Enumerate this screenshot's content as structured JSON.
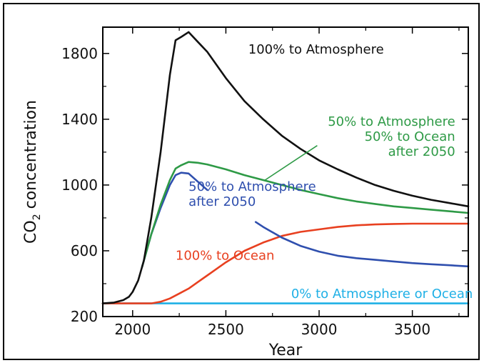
{
  "chart_data": {
    "type": "line",
    "xlabel": "Year",
    "ylabel_main": "CO",
    "ylabel_sub": "2",
    "ylabel_rest": " concentration",
    "xlim": [
      1840,
      3800
    ],
    "ylim": [
      200,
      1960
    ],
    "xticks": [
      2000,
      2500,
      3000,
      3500
    ],
    "yticks": [
      200,
      600,
      1000,
      1400,
      1800
    ],
    "grid": false,
    "series": [
      {
        "name": "100% to Atmosphere",
        "color": "#111111",
        "x": [
          1840,
          1900,
          1950,
          1980,
          2000,
          2030,
          2060,
          2100,
          2150,
          2200,
          2230,
          2260,
          2300,
          2350,
          2400,
          2500,
          2600,
          2700,
          2800,
          2900,
          3000,
          3100,
          3200,
          3300,
          3400,
          3500,
          3600,
          3700,
          3800
        ],
        "values": [
          280,
          285,
          300,
          320,
          350,
          420,
          540,
          800,
          1200,
          1670,
          1880,
          1900,
          1930,
          1870,
          1810,
          1650,
          1510,
          1400,
          1300,
          1220,
          1150,
          1095,
          1045,
          1000,
          965,
          935,
          910,
          890,
          870
        ]
      },
      {
        "name": "50% to Atmosphere 50% to Ocean after 2050",
        "color": "#2e9a46",
        "x": [
          2050,
          2100,
          2150,
          2200,
          2230,
          2260,
          2300,
          2350,
          2400,
          2500,
          2600,
          2700,
          2800,
          2900,
          3000,
          3100,
          3200,
          3300,
          3400,
          3500,
          3600,
          3700,
          3800
        ],
        "values": [
          500,
          700,
          880,
          1030,
          1100,
          1120,
          1140,
          1135,
          1125,
          1095,
          1060,
          1030,
          1000,
          970,
          945,
          920,
          900,
          885,
          870,
          860,
          850,
          840,
          830
        ]
      },
      {
        "name": "50% to Atmosphere after 2050",
        "color": "#2f4fae",
        "x": [
          2050,
          2100,
          2150,
          2200,
          2230,
          2260,
          2300,
          2350,
          2400
        ],
        "values": [
          500,
          700,
          860,
          1000,
          1060,
          1075,
          1070,
          1020,
          970
        ],
        "x2": [
          2660,
          2700,
          2800,
          2900,
          3000,
          3100,
          3200,
          3300,
          3400,
          3500,
          3600,
          3700,
          3800
        ],
        "values2": [
          775,
          745,
          680,
          630,
          595,
          570,
          555,
          545,
          535,
          525,
          518,
          512,
          505
        ]
      },
      {
        "name": "100% to Ocean",
        "color": "#e84020",
        "x": [
          1840,
          2100,
          2150,
          2200,
          2250,
          2300,
          2350,
          2400,
          2500,
          2600,
          2700,
          2800,
          2900,
          3000,
          3100,
          3200,
          3300,
          3400,
          3500,
          3600,
          3700,
          3800
        ],
        "values": [
          280,
          280,
          290,
          310,
          340,
          370,
          410,
          450,
          530,
          600,
          650,
          690,
          715,
          730,
          745,
          755,
          760,
          763,
          765,
          765,
          765,
          765
        ]
      },
      {
        "name": "0% to Atmosphere or Ocean",
        "color": "#1fb0e6",
        "x": [
          1840,
          3800
        ],
        "values": [
          280,
          280
        ]
      }
    ],
    "annotations": [
      {
        "lines": [
          "100% to Atmosphere"
        ],
        "color": "#111111",
        "anchor": "start",
        "at": [
          2620,
          1800
        ]
      },
      {
        "lines": [
          "50% to Atmosphere",
          "50% to Ocean",
          "after 2050"
        ],
        "color": "#2e9a46",
        "anchor": "end",
        "at": [
          3730,
          1360
        ]
      },
      {
        "lines": [
          "50% to Atmosphere",
          "after 2050"
        ],
        "color": "#2f4fae",
        "anchor": "start",
        "at": [
          2300,
          965
        ]
      },
      {
        "lines": [
          "100% to Ocean"
        ],
        "color": "#e84020",
        "anchor": "start",
        "at": [
          2230,
          545
        ]
      },
      {
        "lines": [
          "0% to Atmosphere or Ocean"
        ],
        "color": "#1fb0e6",
        "anchor": "start",
        "at": [
          2850,
          312
        ]
      }
    ]
  }
}
